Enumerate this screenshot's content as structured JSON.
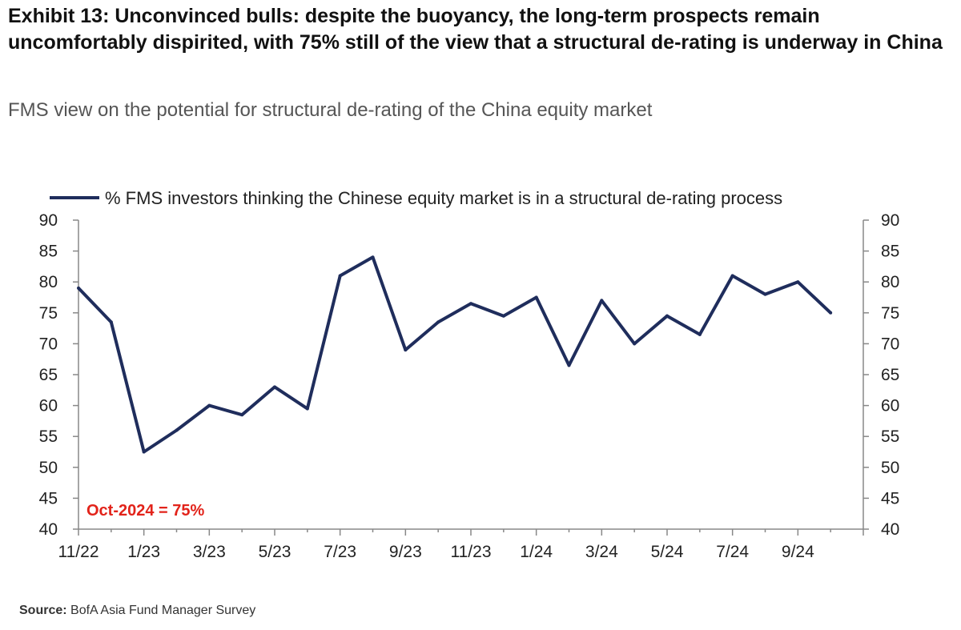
{
  "header": {
    "title": "Exhibit 13: Unconvinced bulls: despite the buoyancy, the long-term prospects remain uncomfortably dispirited, with 75% still of the view that a structural de-rating is underway in China",
    "subtitle": "FMS view on the potential for structural de-rating of the China equity market"
  },
  "footer": {
    "source_label": "Source:",
    "source_text": "BofA Asia Fund Manager Survey"
  },
  "chart_data": {
    "type": "line",
    "series": [
      {
        "name": "% FMS investors thinking the Chinese equity market is in a structural de-rating process",
        "color": "#1f2d5c",
        "values": [
          79,
          73.5,
          52.5,
          56,
          60,
          58.5,
          63,
          59.5,
          81,
          84,
          69,
          73.5,
          76.5,
          74.5,
          77.5,
          66.5,
          77,
          70,
          74.5,
          71.5,
          81,
          78,
          80,
          75
        ]
      }
    ],
    "x_labels": [
      "11/22",
      "12/22",
      "1/23",
      "2/23",
      "3/23",
      "4/23",
      "5/23",
      "6/23",
      "7/23",
      "8/23",
      "9/23",
      "10/23",
      "11/23",
      "12/23",
      "1/24",
      "2/24",
      "3/24",
      "4/24",
      "5/24",
      "6/24",
      "7/24",
      "8/24",
      "9/24",
      "10/24"
    ],
    "x_tick_labels": [
      "11/22",
      "1/23",
      "3/23",
      "5/23",
      "7/23",
      "9/23",
      "11/23",
      "1/24",
      "3/24",
      "5/24",
      "7/24",
      "9/24"
    ],
    "ylim": [
      40,
      90
    ],
    "y_ticks": [
      40,
      45,
      50,
      55,
      60,
      65,
      70,
      75,
      80,
      85,
      90
    ],
    "annotation": "Oct-2024 = 75%",
    "legend_position": "top",
    "grid": false
  }
}
